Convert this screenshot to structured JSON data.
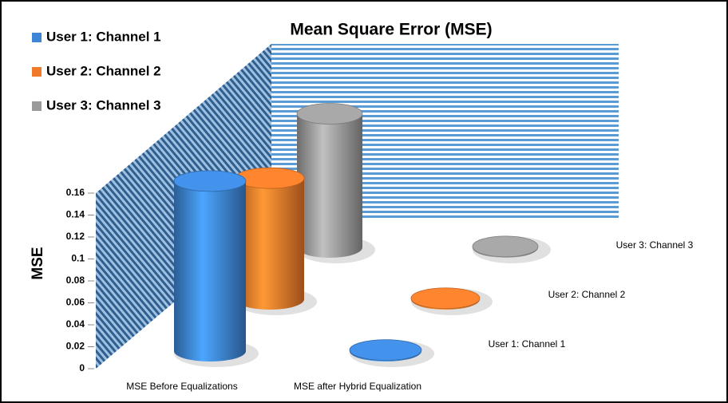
{
  "chart_data": {
    "type": "bar3d",
    "title": "Mean Square Error (MSE)",
    "ylabel": "MSE",
    "categories": [
      "MSE Before Equalizations",
      "MSE after Hybrid Equalization"
    ],
    "series": [
      {
        "name": "User 1: Channel 1",
        "color": "#3d85d6",
        "values": [
          0.155,
          0.001
        ]
      },
      {
        "name": "User 2: Channel 2",
        "color": "#f07a2a",
        "values": [
          0.12,
          0.001
        ]
      },
      {
        "name": "User 3: Channel 3",
        "color": "#9a9a9a",
        "values": [
          0.145,
          0.001
        ]
      }
    ],
    "ylim": [
      0,
      0.16
    ],
    "yticks": [
      0,
      0.02,
      0.04,
      0.06,
      0.08,
      0.1,
      0.12,
      0.14,
      0.16
    ]
  }
}
